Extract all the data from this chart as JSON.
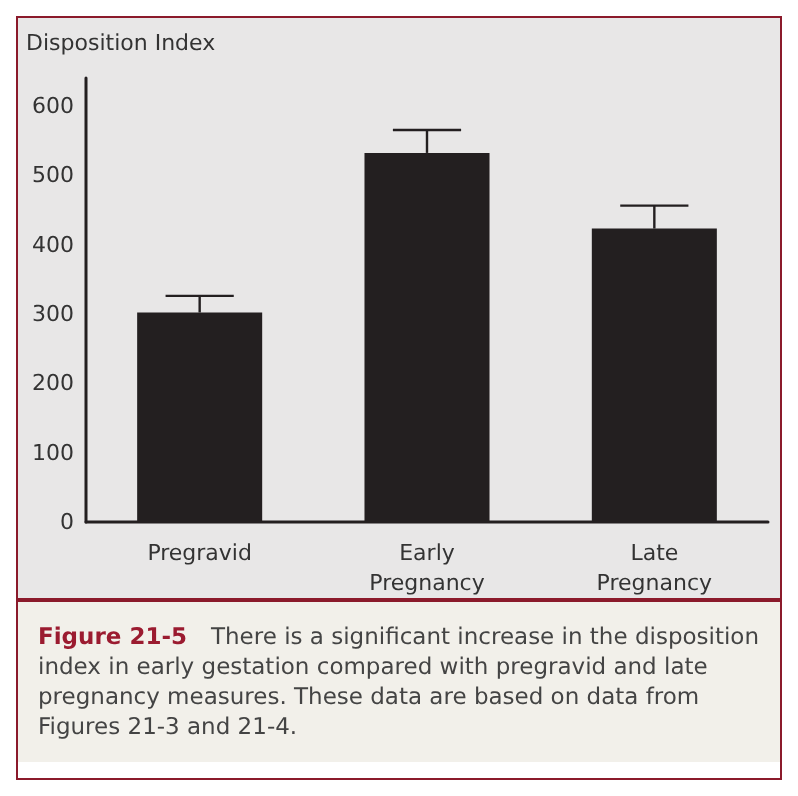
{
  "chart_data": {
    "type": "bar",
    "ylabel": "Disposition Index",
    "categories": [
      "Pregravid",
      "Early\nPregnancy",
      "Late\nPregnancy"
    ],
    "values": [
      302,
      532,
      423
    ],
    "errors": [
      [
        302,
        326
      ],
      [
        532,
        565
      ],
      [
        423,
        456
      ]
    ],
    "color": "#231f20",
    "ylim": [
      0,
      640
    ],
    "yticks": [
      0,
      100,
      200,
      300,
      400,
      500,
      600
    ],
    "grid": false,
    "annotations": [
      "Figure 21-5",
      "There is a significant increase in the disposition index in early gestation compared with pregravid and late pregnancy measures. These data are based on data from Figures 21-3 and 21-4."
    ]
  }
}
